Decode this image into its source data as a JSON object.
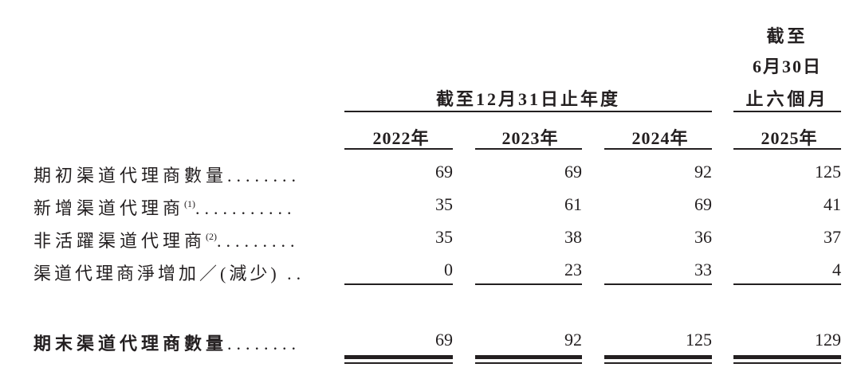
{
  "header": {
    "year_group": "截至12月31日止年度",
    "interim_line1": "截至",
    "interim_line2": "6月30日",
    "interim_line3": "止六個月"
  },
  "columns": [
    "2022年",
    "2023年",
    "2024年",
    "2025年"
  ],
  "rows": [
    {
      "label": "期初渠道代理商數量",
      "note": "",
      "dots": "........",
      "values": [
        "69",
        "69",
        "92",
        "125"
      ]
    },
    {
      "label": "新增渠道代理商",
      "note": "(1)",
      "dots": "...........",
      "values": [
        "35",
        "61",
        "69",
        "41"
      ]
    },
    {
      "label": "非活躍渠道代理商",
      "note": "(2)",
      "dots": ".........",
      "values": [
        "35",
        "38",
        "36",
        "37"
      ]
    },
    {
      "label": "渠道代理商淨增加／(減少)",
      "note": "",
      "dots": "..",
      "values": [
        "0",
        "23",
        "33",
        "4"
      ]
    }
  ],
  "total": {
    "label": "期末渠道代理商數量",
    "dots": "........",
    "values": [
      "69",
      "92",
      "125",
      "129"
    ]
  }
}
